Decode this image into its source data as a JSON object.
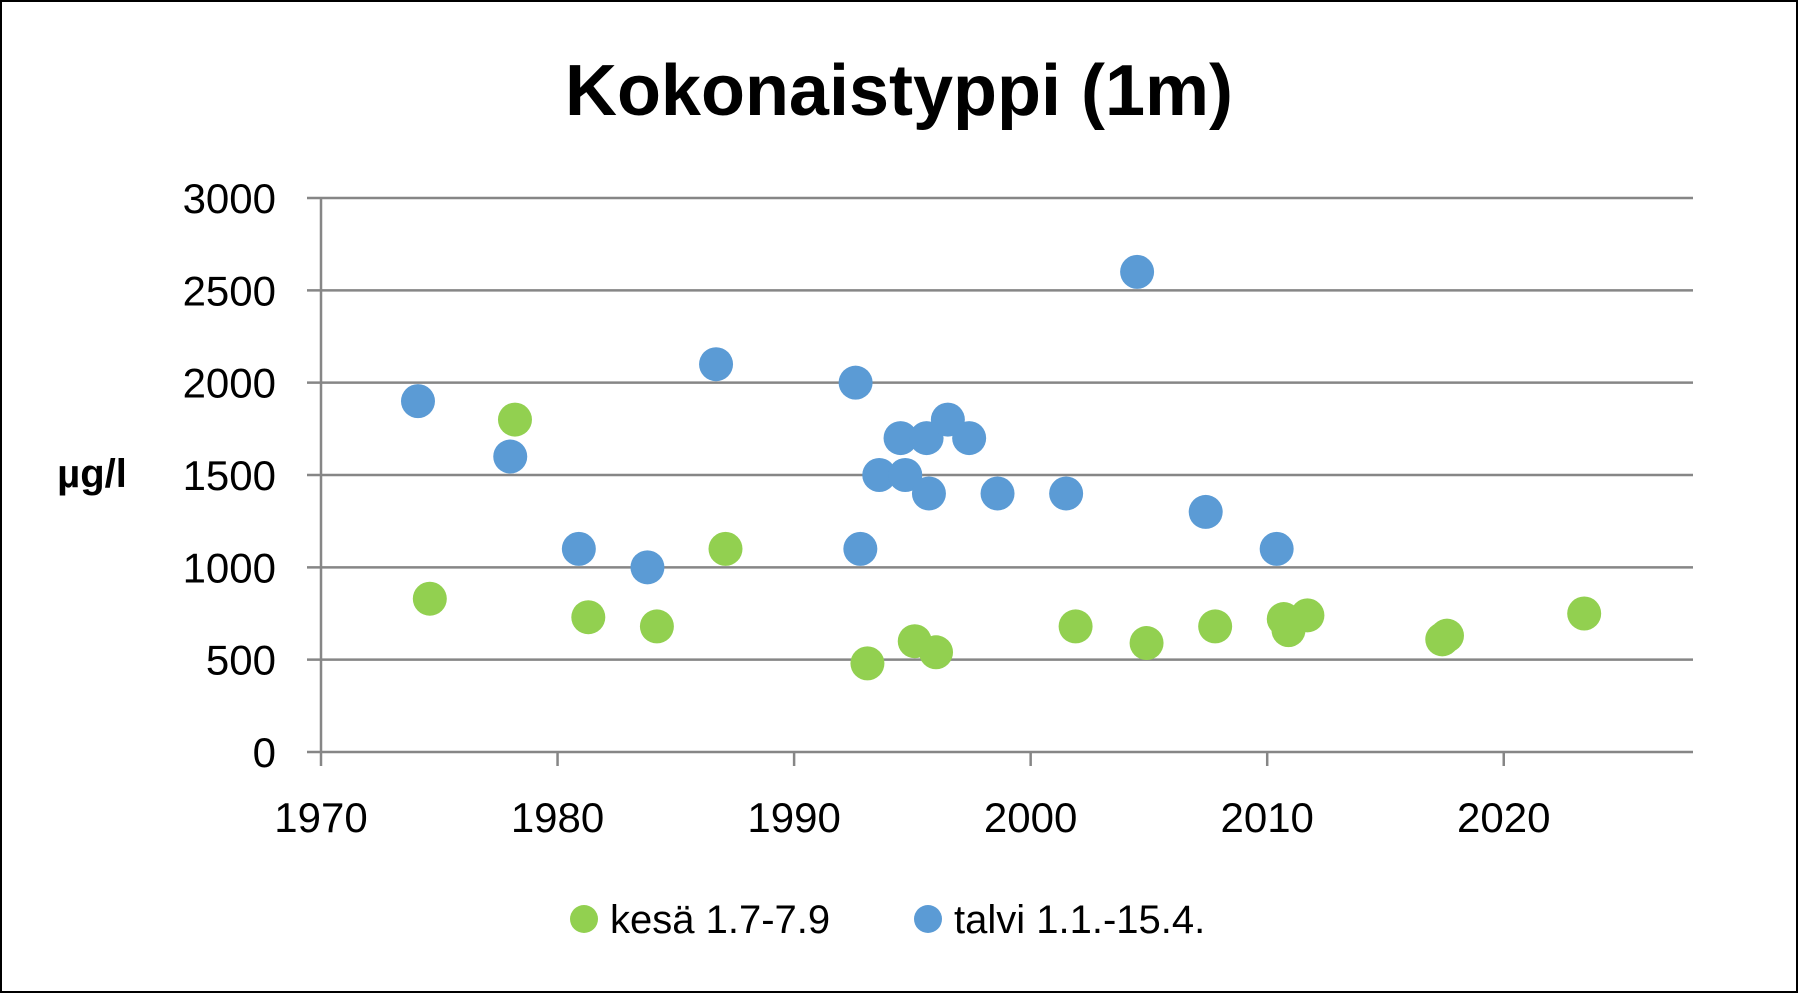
{
  "chart_data": {
    "type": "scatter",
    "title": "Kokonaistyppi (1m)",
    "ylabel": "µg/l",
    "xlabel": "",
    "xlim": [
      1970,
      2028
    ],
    "ylim": [
      0,
      3000
    ],
    "x_ticks": [
      1970,
      1980,
      1990,
      2000,
      2010,
      2020
    ],
    "y_ticks": [
      0,
      500,
      1000,
      1500,
      2000,
      2500,
      3000
    ],
    "grid": "horizontal",
    "legend_position": "bottom",
    "series": [
      {
        "name": "kesä 1.7-7.9",
        "color": "#92d050",
        "points": [
          [
            1974.6,
            830
          ],
          [
            1978.2,
            1800
          ],
          [
            1981.3,
            730
          ],
          [
            1984.2,
            680
          ],
          [
            1987.1,
            1100
          ],
          [
            1993.1,
            480
          ],
          [
            1995.1,
            600
          ],
          [
            1996.0,
            540
          ],
          [
            2001.9,
            680
          ],
          [
            2004.9,
            590
          ],
          [
            2007.8,
            680
          ],
          [
            2010.7,
            720
          ],
          [
            2010.9,
            660
          ],
          [
            2011.7,
            740
          ],
          [
            2017.4,
            610
          ],
          [
            2017.6,
            630
          ],
          [
            2023.4,
            750
          ]
        ]
      },
      {
        "name": "talvi 1.1.-15.4.",
        "color": "#5b9bd5",
        "points": [
          [
            1974.1,
            1900
          ],
          [
            1978.0,
            1600
          ],
          [
            1980.9,
            1100
          ],
          [
            1983.8,
            1000
          ],
          [
            1986.7,
            2100
          ],
          [
            1992.6,
            2000
          ],
          [
            1992.8,
            1100
          ],
          [
            1993.6,
            1500
          ],
          [
            1994.5,
            1700
          ],
          [
            1994.7,
            1500
          ],
          [
            1995.6,
            1700
          ],
          [
            1995.7,
            1400
          ],
          [
            1996.5,
            1800
          ],
          [
            1997.4,
            1700
          ],
          [
            1998.6,
            1400
          ],
          [
            2001.5,
            1400
          ],
          [
            2004.5,
            2600
          ],
          [
            2007.4,
            1300
          ],
          [
            2010.4,
            1100
          ]
        ]
      }
    ]
  }
}
